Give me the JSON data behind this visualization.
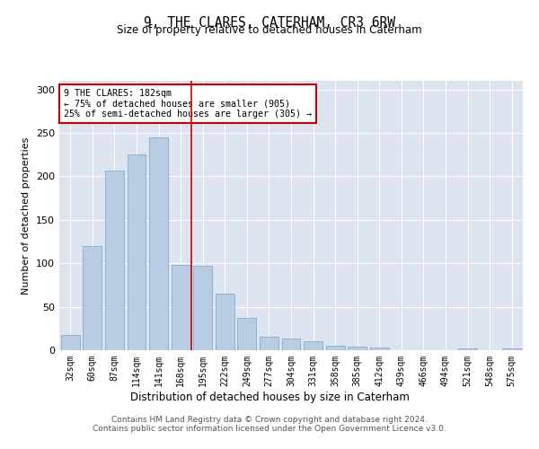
{
  "title": "9, THE CLARES, CATERHAM, CR3 6RW",
  "subtitle": "Size of property relative to detached houses in Caterham",
  "xlabel": "Distribution of detached houses by size in Caterham",
  "ylabel": "Number of detached properties",
  "categories": [
    "32sqm",
    "60sqm",
    "87sqm",
    "114sqm",
    "141sqm",
    "168sqm",
    "195sqm",
    "222sqm",
    "249sqm",
    "277sqm",
    "304sqm",
    "331sqm",
    "358sqm",
    "385sqm",
    "412sqm",
    "439sqm",
    "466sqm",
    "494sqm",
    "521sqm",
    "548sqm",
    "575sqm"
  ],
  "values": [
    18,
    120,
    207,
    225,
    245,
    98,
    97,
    65,
    37,
    16,
    13,
    10,
    5,
    4,
    3,
    0,
    0,
    0,
    2,
    0,
    2
  ],
  "bar_color": "#b8cce4",
  "bar_edge_color": "#7aa0c4",
  "vline_x_idx": 5.5,
  "vline_color": "#cc0000",
  "annotation_text": "9 THE CLARES: 182sqm\n← 75% of detached houses are smaller (905)\n25% of semi-detached houses are larger (305) →",
  "annotation_box_color": "#ffffff",
  "annotation_box_edge": "#cc0000",
  "ylim": [
    0,
    310
  ],
  "yticks": [
    0,
    50,
    100,
    150,
    200,
    250,
    300
  ],
  "background_color": "#dde4f0",
  "grid_color": "#ffffff",
  "footer_line1": "Contains HM Land Registry data © Crown copyright and database right 2024.",
  "footer_line2": "Contains public sector information licensed under the Open Government Licence v3.0."
}
